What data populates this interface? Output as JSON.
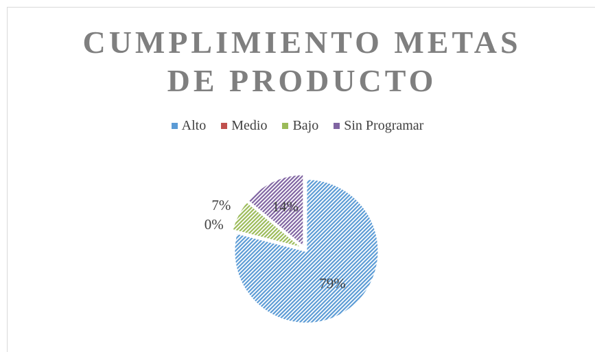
{
  "chart_data": {
    "type": "pie",
    "title": "CUMPLIMIENTO METAS DE PRODUCTO",
    "categories": [
      "Alto",
      "Medio",
      "Bajo",
      "Sin Programar"
    ],
    "values": [
      79,
      0,
      7,
      14
    ],
    "value_labels": [
      "79%",
      "0%",
      "7%",
      "14%"
    ],
    "colors": [
      "#5b9bd5",
      "#c0504d",
      "#9bbb59",
      "#8064a2"
    ],
    "legend": "top"
  }
}
